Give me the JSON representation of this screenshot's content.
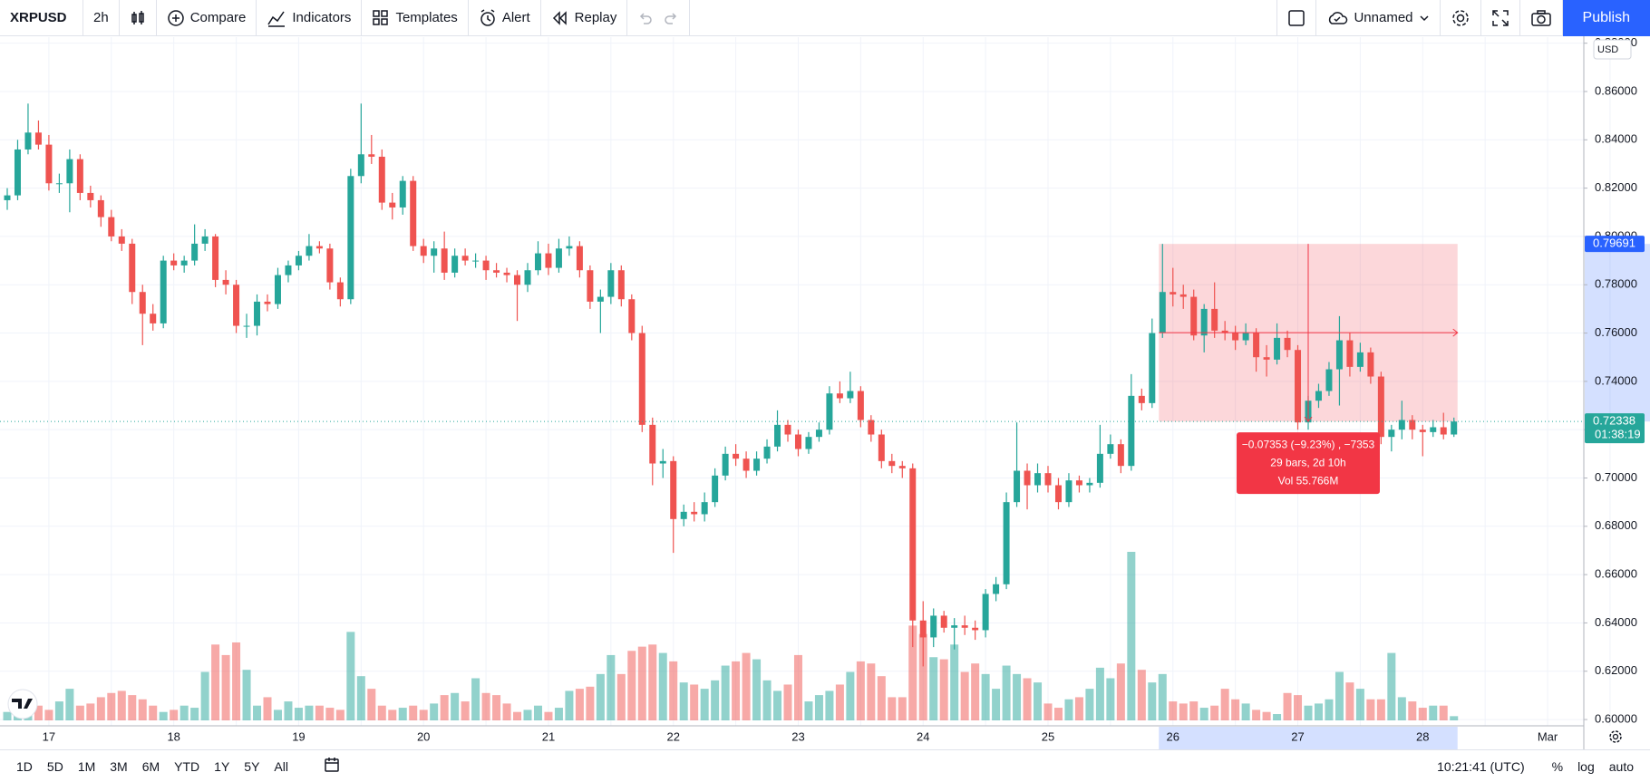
{
  "toolbar": {
    "symbol": "XRPUSD",
    "interval": "2h",
    "compare": "Compare",
    "indicators": "Indicators",
    "templates": "Templates",
    "alert": "Alert",
    "replay": "Replay",
    "layout": "Unnamed",
    "publish": "Publish"
  },
  "bottom_bar": {
    "ranges": [
      "1D",
      "5D",
      "1M",
      "3M",
      "6M",
      "YTD",
      "1Y",
      "5Y",
      "All"
    ],
    "clock": "10:21:41 (UTC)",
    "percent": "%",
    "log": "log",
    "auto": "auto"
  },
  "chart_data": {
    "type": "candlestick",
    "currency": "USD",
    "up_color": "#26a69a",
    "down_color": "#ef5350",
    "grid": true,
    "ylim": [
      0.5974,
      0.8825
    ],
    "yticks": [
      {
        "value": 0.6,
        "label": "0.60000"
      },
      {
        "value": 0.62,
        "label": "0.62000"
      },
      {
        "value": 0.64,
        "label": "0.64000"
      },
      {
        "value": 0.66,
        "label": "0.66000"
      },
      {
        "value": 0.68,
        "label": "0.68000"
      },
      {
        "value": 0.7,
        "label": "0.70000"
      },
      {
        "value": 0.72,
        "label": "0.72000"
      },
      {
        "value": 0.74,
        "label": "0.74000"
      },
      {
        "value": 0.76,
        "label": "0.76000"
      },
      {
        "value": 0.78,
        "label": "0.78000"
      },
      {
        "value": 0.8,
        "label": "0.80000"
      },
      {
        "value": 0.82,
        "label": "0.82000"
      },
      {
        "value": 0.84,
        "label": "0.84000"
      },
      {
        "value": 0.86,
        "label": "0.86000"
      },
      {
        "value": 0.88,
        "label": "0.88000"
      }
    ],
    "x_labels": [
      "17",
      "18",
      "19",
      "20",
      "21",
      "22",
      "23",
      "24",
      "25",
      "26",
      "27",
      "28",
      "Mar"
    ],
    "ohlc": [
      [
        0.815,
        0.82,
        0.811,
        0.817
      ],
      [
        0.817,
        0.84,
        0.815,
        0.836
      ],
      [
        0.836,
        0.855,
        0.834,
        0.843
      ],
      [
        0.843,
        0.848,
        0.836,
        0.838
      ],
      [
        0.838,
        0.842,
        0.819,
        0.822
      ],
      [
        0.822,
        0.826,
        0.818,
        0.822
      ],
      [
        0.822,
        0.836,
        0.81,
        0.832
      ],
      [
        0.832,
        0.834,
        0.815,
        0.818
      ],
      [
        0.818,
        0.821,
        0.812,
        0.815
      ],
      [
        0.815,
        0.817,
        0.804,
        0.808
      ],
      [
        0.808,
        0.811,
        0.798,
        0.8
      ],
      [
        0.8,
        0.803,
        0.794,
        0.797
      ],
      [
        0.797,
        0.799,
        0.772,
        0.777
      ],
      [
        0.777,
        0.78,
        0.755,
        0.768
      ],
      [
        0.768,
        0.772,
        0.761,
        0.764
      ],
      [
        0.764,
        0.792,
        0.762,
        0.79
      ],
      [
        0.79,
        0.793,
        0.786,
        0.788
      ],
      [
        0.788,
        0.792,
        0.785,
        0.79
      ],
      [
        0.79,
        0.805,
        0.788,
        0.797
      ],
      [
        0.797,
        0.803,
        0.794,
        0.8
      ],
      [
        0.8,
        0.801,
        0.779,
        0.782
      ],
      [
        0.782,
        0.786,
        0.776,
        0.78
      ],
      [
        0.78,
        0.782,
        0.76,
        0.763
      ],
      [
        0.763,
        0.768,
        0.758,
        0.763
      ],
      [
        0.763,
        0.776,
        0.759,
        0.773
      ],
      [
        0.773,
        0.776,
        0.769,
        0.772
      ],
      [
        0.772,
        0.787,
        0.77,
        0.784
      ],
      [
        0.784,
        0.79,
        0.781,
        0.788
      ],
      [
        0.788,
        0.794,
        0.786,
        0.792
      ],
      [
        0.792,
        0.801,
        0.79,
        0.796
      ],
      [
        0.796,
        0.798,
        0.793,
        0.795
      ],
      [
        0.795,
        0.797,
        0.778,
        0.781
      ],
      [
        0.781,
        0.783,
        0.771,
        0.774
      ],
      [
        0.774,
        0.828,
        0.772,
        0.825
      ],
      [
        0.825,
        0.855,
        0.822,
        0.834
      ],
      [
        0.834,
        0.842,
        0.83,
        0.833
      ],
      [
        0.833,
        0.836,
        0.811,
        0.814
      ],
      [
        0.814,
        0.818,
        0.807,
        0.812
      ],
      [
        0.812,
        0.825,
        0.809,
        0.823
      ],
      [
        0.823,
        0.825,
        0.794,
        0.796
      ],
      [
        0.796,
        0.799,
        0.789,
        0.792
      ],
      [
        0.792,
        0.798,
        0.785,
        0.795
      ],
      [
        0.795,
        0.802,
        0.782,
        0.785
      ],
      [
        0.785,
        0.795,
        0.783,
        0.792
      ],
      [
        0.792,
        0.795,
        0.788,
        0.79
      ],
      [
        0.79,
        0.793,
        0.787,
        0.79
      ],
      [
        0.79,
        0.792,
        0.782,
        0.786
      ],
      [
        0.786,
        0.789,
        0.783,
        0.785
      ],
      [
        0.785,
        0.787,
        0.781,
        0.784
      ],
      [
        0.784,
        0.786,
        0.765,
        0.78
      ],
      [
        0.78,
        0.789,
        0.777,
        0.786
      ],
      [
        0.786,
        0.798,
        0.784,
        0.793
      ],
      [
        0.793,
        0.797,
        0.784,
        0.787
      ],
      [
        0.787,
        0.799,
        0.785,
        0.795
      ],
      [
        0.795,
        0.8,
        0.792,
        0.796
      ],
      [
        0.796,
        0.798,
        0.783,
        0.786
      ],
      [
        0.786,
        0.788,
        0.77,
        0.773
      ],
      [
        0.773,
        0.778,
        0.76,
        0.775
      ],
      [
        0.775,
        0.789,
        0.772,
        0.786
      ],
      [
        0.786,
        0.788,
        0.771,
        0.774
      ],
      [
        0.774,
        0.776,
        0.757,
        0.76
      ],
      [
        0.76,
        0.763,
        0.719,
        0.722
      ],
      [
        0.722,
        0.725,
        0.697,
        0.706
      ],
      [
        0.706,
        0.712,
        0.7,
        0.707
      ],
      [
        0.707,
        0.709,
        0.669,
        0.683
      ],
      [
        0.683,
        0.689,
        0.68,
        0.686
      ],
      [
        0.686,
        0.69,
        0.682,
        0.685
      ],
      [
        0.685,
        0.694,
        0.682,
        0.69
      ],
      [
        0.69,
        0.704,
        0.688,
        0.701
      ],
      [
        0.701,
        0.713,
        0.699,
        0.71
      ],
      [
        0.71,
        0.714,
        0.705,
        0.708
      ],
      [
        0.708,
        0.711,
        0.7,
        0.703
      ],
      [
        0.703,
        0.711,
        0.701,
        0.708
      ],
      [
        0.708,
        0.716,
        0.706,
        0.713
      ],
      [
        0.713,
        0.728,
        0.711,
        0.722
      ],
      [
        0.722,
        0.724,
        0.715,
        0.718
      ],
      [
        0.718,
        0.72,
        0.709,
        0.712
      ],
      [
        0.712,
        0.719,
        0.71,
        0.717
      ],
      [
        0.717,
        0.723,
        0.715,
        0.72
      ],
      [
        0.72,
        0.738,
        0.718,
        0.735
      ],
      [
        0.735,
        0.74,
        0.731,
        0.733
      ],
      [
        0.733,
        0.744,
        0.731,
        0.736
      ],
      [
        0.736,
        0.738,
        0.721,
        0.724
      ],
      [
        0.724,
        0.726,
        0.715,
        0.718
      ],
      [
        0.718,
        0.72,
        0.704,
        0.707
      ],
      [
        0.707,
        0.71,
        0.702,
        0.705
      ],
      [
        0.705,
        0.707,
        0.7,
        0.704
      ],
      [
        0.704,
        0.706,
        0.63,
        0.641
      ],
      [
        0.641,
        0.649,
        0.622,
        0.634
      ],
      [
        0.634,
        0.646,
        0.63,
        0.643
      ],
      [
        0.643,
        0.645,
        0.636,
        0.638
      ],
      [
        0.638,
        0.642,
        0.629,
        0.639
      ],
      [
        0.639,
        0.643,
        0.635,
        0.638
      ],
      [
        0.638,
        0.641,
        0.633,
        0.637
      ],
      [
        0.637,
        0.654,
        0.634,
        0.652
      ],
      [
        0.652,
        0.659,
        0.649,
        0.656
      ],
      [
        0.656,
        0.694,
        0.654,
        0.69
      ],
      [
        0.69,
        0.723,
        0.688,
        0.703
      ],
      [
        0.703,
        0.706,
        0.687,
        0.697
      ],
      [
        0.697,
        0.706,
        0.694,
        0.702
      ],
      [
        0.702,
        0.705,
        0.694,
        0.697
      ],
      [
        0.697,
        0.7,
        0.687,
        0.69
      ],
      [
        0.69,
        0.702,
        0.688,
        0.699
      ],
      [
        0.699,
        0.701,
        0.694,
        0.697
      ],
      [
        0.697,
        0.7,
        0.694,
        0.698
      ],
      [
        0.698,
        0.722,
        0.696,
        0.71
      ],
      [
        0.71,
        0.718,
        0.708,
        0.714
      ],
      [
        0.714,
        0.716,
        0.702,
        0.705
      ],
      [
        0.705,
        0.743,
        0.703,
        0.734
      ],
      [
        0.734,
        0.737,
        0.728,
        0.731
      ],
      [
        0.731,
        0.766,
        0.729,
        0.76
      ],
      [
        0.76,
        0.79691,
        0.758,
        0.777
      ],
      [
        0.777,
        0.787,
        0.771,
        0.776
      ],
      [
        0.776,
        0.78,
        0.77,
        0.775
      ],
      [
        0.775,
        0.778,
        0.757,
        0.759
      ],
      [
        0.759,
        0.772,
        0.752,
        0.77
      ],
      [
        0.77,
        0.781,
        0.758,
        0.761
      ],
      [
        0.761,
        0.765,
        0.757,
        0.76
      ],
      [
        0.76,
        0.763,
        0.753,
        0.757
      ],
      [
        0.757,
        0.764,
        0.755,
        0.76
      ],
      [
        0.76,
        0.762,
        0.744,
        0.75
      ],
      [
        0.75,
        0.755,
        0.742,
        0.749
      ],
      [
        0.749,
        0.764,
        0.747,
        0.758
      ],
      [
        0.758,
        0.761,
        0.75,
        0.753
      ],
      [
        0.753,
        0.755,
        0.72,
        0.723
      ],
      [
        0.723,
        0.734,
        0.72,
        0.732
      ],
      [
        0.732,
        0.739,
        0.729,
        0.736
      ],
      [
        0.736,
        0.748,
        0.734,
        0.745
      ],
      [
        0.745,
        0.767,
        0.73,
        0.757
      ],
      [
        0.757,
        0.76,
        0.742,
        0.746
      ],
      [
        0.746,
        0.756,
        0.744,
        0.752
      ],
      [
        0.752,
        0.754,
        0.739,
        0.742
      ],
      [
        0.742,
        0.744,
        0.714,
        0.717
      ],
      [
        0.717,
        0.722,
        0.711,
        0.72
      ],
      [
        0.72,
        0.732,
        0.716,
        0.724
      ],
      [
        0.724,
        0.726,
        0.716,
        0.72
      ],
      [
        0.72,
        0.722,
        0.709,
        0.719
      ],
      [
        0.719,
        0.724,
        0.717,
        0.721
      ],
      [
        0.721,
        0.727,
        0.716,
        0.718
      ],
      [
        0.718,
        0.725,
        0.717,
        0.72338
      ]
    ],
    "volume": [
      0.8,
      1.2,
      1.6,
      1.4,
      1.0,
      1.8,
      3.0,
      1.4,
      1.6,
      2.2,
      2.6,
      2.8,
      2.4,
      2.0,
      1.4,
      0.8,
      1.0,
      1.4,
      1.2,
      4.6,
      7.2,
      6.2,
      7.4,
      4.8,
      1.4,
      2.2,
      1.0,
      1.8,
      1.2,
      1.4,
      1.4,
      1.2,
      1.0,
      8.4,
      4.2,
      3.0,
      1.4,
      1.0,
      1.2,
      1.4,
      1.0,
      1.6,
      2.4,
      2.6,
      1.8,
      4.0,
      2.6,
      2.4,
      1.6,
      0.8,
      1.0,
      1.4,
      0.8,
      1.2,
      2.8,
      3.0,
      3.2,
      4.4,
      6.2,
      4.4,
      6.6,
      7.0,
      7.2,
      6.4,
      5.6,
      3.6,
      3.4,
      3.0,
      3.8,
      5.2,
      5.6,
      6.4,
      5.8,
      3.8,
      2.8,
      3.4,
      6.2,
      1.8,
      2.4,
      2.8,
      3.4,
      4.6,
      5.6,
      5.4,
      4.2,
      2.2,
      2.2,
      9.0,
      8.2,
      6.0,
      5.8,
      7.2,
      4.6,
      5.4,
      4.4,
      3.0,
      5.2,
      4.4,
      4.0,
      3.6,
      1.6,
      1.2,
      2.0,
      2.2,
      3.0,
      5.0,
      4.0,
      5.4,
      16.0,
      4.8,
      3.6,
      4.4,
      1.8,
      1.6,
      1.8,
      1.2,
      1.4,
      3.0,
      2.0,
      1.6,
      1.0,
      0.8,
      0.6,
      2.6,
      2.4,
      1.4,
      1.6,
      2.0,
      4.6,
      3.6,
      3.0,
      2.0,
      2.0,
      6.4,
      2.2,
      1.8,
      1.2,
      1.4,
      1.4,
      0.4
    ],
    "last_price": 0.72338,
    "countdown": "01:38:19",
    "measure": {
      "from_price": 0.79691,
      "to_price": 0.72338,
      "change": "−0.07353 (−9.23%) , −7353",
      "bars": "29 bars, 2d 10h",
      "volume": "Vol 55.766M"
    }
  }
}
